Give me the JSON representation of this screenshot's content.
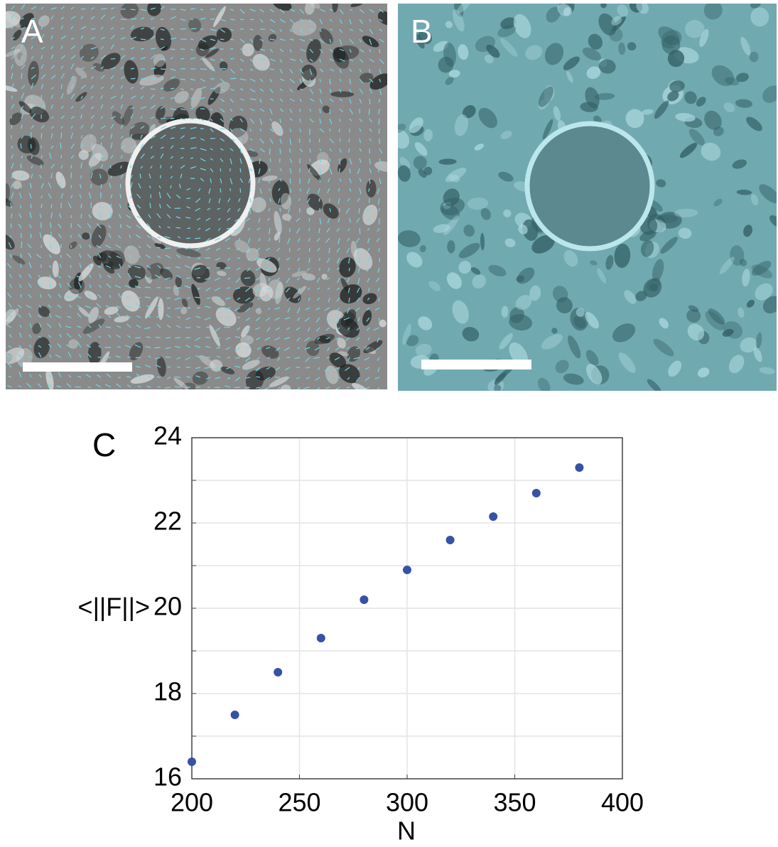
{
  "panels": [
    {
      "label": "A"
    },
    {
      "label": "B"
    }
  ],
  "chart_data": {
    "type": "scatter",
    "panel_label": "C",
    "xlabel": "N",
    "ylabel": "<||F||>",
    "x": [
      200,
      220,
      240,
      260,
      280,
      300,
      320,
      340,
      360,
      380
    ],
    "values": [
      16.4,
      17.5,
      18.5,
      19.3,
      20.2,
      20.9,
      21.6,
      22.15,
      22.7,
      23.3
    ],
    "color": "#3652a6",
    "xlim": [
      200,
      400
    ],
    "xticks": [
      200,
      250,
      300,
      350,
      400
    ],
    "ylim": [
      16,
      24
    ],
    "yticks": [
      16,
      18,
      20,
      22,
      24
    ],
    "yminorticks": [
      17,
      19,
      21,
      23
    ],
    "grid": true
  }
}
